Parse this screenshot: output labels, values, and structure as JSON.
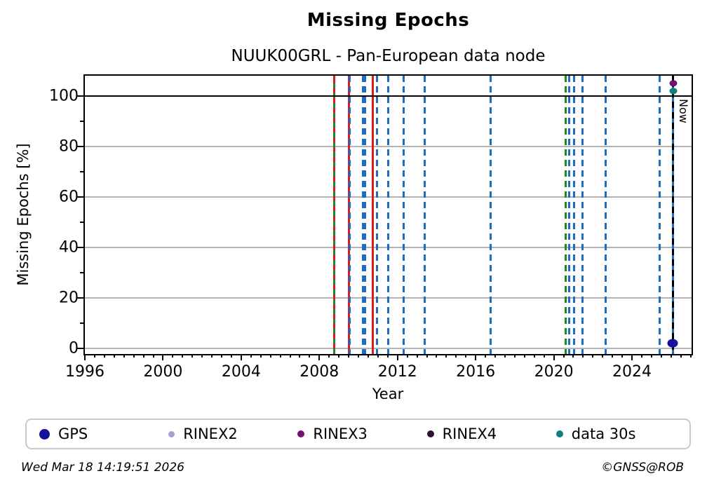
{
  "title": "Missing Epochs",
  "subtitle": "NUUK00GRL - Pan-European data node",
  "footer": {
    "timestamp": "Wed Mar 18 14:19:51 2026",
    "credit": "©GNSS@ROB"
  },
  "legend": {
    "items": [
      {
        "label": "GPS",
        "color": "#12129e",
        "dot_size": 15
      },
      {
        "label": "RINEX2",
        "color": "#a2a2d2",
        "dot_size": 9
      },
      {
        "label": "RINEX3",
        "color": "#71106e",
        "dot_size": 10
      },
      {
        "label": "RINEX4",
        "color": "#2e1030",
        "dot_size": 10
      },
      {
        "label": "data 30s",
        "color": "#0f8080",
        "dot_size": 10
      }
    ]
  },
  "chart_data": {
    "type": "scatter",
    "title": "Missing Epochs",
    "subtitle": "NUUK00GRL - Pan-European data node",
    "xlabel": "Year",
    "ylabel": "Missing Epochs [%]",
    "xlim": [
      1996,
      2027.05
    ],
    "ylim": [
      -2.25,
      108.1
    ],
    "xticks_major": [
      1996,
      2000,
      2004,
      2008,
      2012,
      2016,
      2020,
      2024
    ],
    "xtick_minor_step": 0.5,
    "yticks_major": [
      0,
      20,
      40,
      60,
      80,
      100
    ],
    "yticks_minor": [
      10,
      30,
      50,
      70,
      90
    ],
    "grid_y": [
      0,
      20,
      40,
      60,
      80
    ],
    "hline": {
      "y": 100,
      "color": "#000000"
    },
    "colors": {
      "event_blue": "#1b6ec2",
      "event_green": "#1f8b1f",
      "event_red": "#dc1a1a",
      "now_black": "#000000"
    },
    "event_lines": [
      {
        "x": 2008.76,
        "color": "#1f8b1f",
        "style": "solid",
        "width": 3
      },
      {
        "x": 2008.76,
        "color": "#dc1a1a",
        "style": "dashed",
        "width": 2.5,
        "dash": [
          7,
          7
        ],
        "phase": 4
      },
      {
        "x": 2009.52,
        "color": "#dc1a1a",
        "style": "solid",
        "width": 2.5
      },
      {
        "x": 2009.56,
        "color": "#1b6ec2",
        "style": "dashed",
        "width": 3
      },
      {
        "x": 2010.23,
        "color": "#1b6ec2",
        "style": "dashed",
        "width": 3
      },
      {
        "x": 2010.34,
        "color": "#1b6ec2",
        "style": "dashed",
        "width": 3
      },
      {
        "x": 2010.74,
        "color": "#dc1a1a",
        "style": "solid",
        "width": 2.5
      },
      {
        "x": 2010.95,
        "color": "#1b6ec2",
        "style": "dashed",
        "width": 3
      },
      {
        "x": 2011.53,
        "color": "#1b6ec2",
        "style": "dashed",
        "width": 3
      },
      {
        "x": 2012.32,
        "color": "#1b6ec2",
        "style": "dashed",
        "width": 3
      },
      {
        "x": 2013.4,
        "color": "#1b6ec2",
        "style": "dashed",
        "width": 3
      },
      {
        "x": 2016.78,
        "color": "#1b6ec2",
        "style": "dashed",
        "width": 3
      },
      {
        "x": 2020.59,
        "color": "#1f8b1f",
        "style": "dashed",
        "width": 3
      },
      {
        "x": 2020.77,
        "color": "#1b6ec2",
        "style": "dashed",
        "width": 3
      },
      {
        "x": 2021.05,
        "color": "#1b6ec2",
        "style": "dashed",
        "width": 3
      },
      {
        "x": 2021.48,
        "color": "#1b6ec2",
        "style": "dashed",
        "width": 3
      },
      {
        "x": 2022.67,
        "color": "#1b6ec2",
        "style": "dashed",
        "width": 3
      },
      {
        "x": 2025.41,
        "color": "#1b6ec2",
        "style": "dashed",
        "width": 3
      },
      {
        "x": 2026.1,
        "color": "#1b6ec2",
        "style": "dashed",
        "width": 3
      },
      {
        "x": 2026.1,
        "color": "#000000",
        "style": "dashed",
        "width": 3,
        "dash": [
          9,
          6
        ],
        "phase": 7
      }
    ],
    "now_line": {
      "x": 2026.1,
      "label": "Now"
    },
    "points": [
      {
        "series": "RINEX3",
        "x": 2026.1,
        "y": 105,
        "color": "#71106e",
        "size": 11
      },
      {
        "series": "data 30s",
        "x": 2026.1,
        "y": 102,
        "color": "#0f8080",
        "size": 11
      },
      {
        "series": "GPS",
        "x": 2026.07,
        "y": 2,
        "color": "#12129e",
        "size": 15
      }
    ],
    "legend_position": "bottom",
    "grid": "horizontal-only"
  }
}
